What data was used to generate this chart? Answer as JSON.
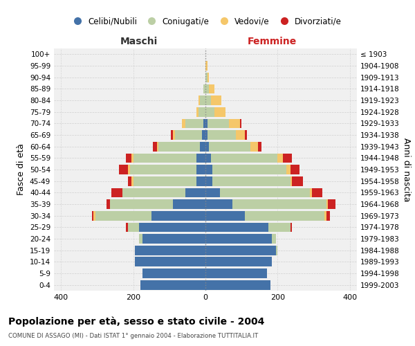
{
  "age_groups": [
    "0-4",
    "5-9",
    "10-14",
    "15-19",
    "20-24",
    "25-29",
    "30-34",
    "35-39",
    "40-44",
    "45-49",
    "50-54",
    "55-59",
    "60-64",
    "65-69",
    "70-74",
    "75-79",
    "80-84",
    "85-89",
    "90-94",
    "95-99",
    "100+"
  ],
  "birth_years": [
    "1999-2003",
    "1994-1998",
    "1989-1993",
    "1984-1988",
    "1979-1983",
    "1974-1978",
    "1969-1973",
    "1964-1968",
    "1959-1963",
    "1954-1958",
    "1949-1953",
    "1944-1948",
    "1939-1943",
    "1934-1938",
    "1929-1933",
    "1924-1928",
    "1919-1923",
    "1914-1918",
    "1909-1913",
    "1904-1908",
    "≤ 1903"
  ],
  "maschi": {
    "celibi": [
      180,
      175,
      195,
      195,
      175,
      185,
      150,
      90,
      55,
      25,
      25,
      25,
      15,
      10,
      5,
      0,
      0,
      0,
      0,
      0,
      0
    ],
    "coniugati": [
      0,
      0,
      0,
      0,
      10,
      30,
      155,
      175,
      175,
      175,
      185,
      175,
      115,
      75,
      50,
      20,
      15,
      5,
      0,
      0,
      0
    ],
    "vedovi": [
      0,
      0,
      0,
      0,
      0,
      0,
      5,
      0,
      0,
      5,
      5,
      5,
      5,
      5,
      10,
      5,
      5,
      0,
      0,
      0,
      0
    ],
    "divorziati": [
      0,
      0,
      0,
      0,
      0,
      5,
      5,
      10,
      30,
      10,
      25,
      15,
      10,
      5,
      0,
      0,
      0,
      0,
      0,
      0,
      0
    ]
  },
  "femmine": {
    "nubili": [
      180,
      170,
      185,
      195,
      185,
      175,
      110,
      75,
      40,
      20,
      20,
      15,
      10,
      5,
      5,
      0,
      0,
      0,
      0,
      0,
      0
    ],
    "coniugate": [
      0,
      0,
      0,
      5,
      10,
      60,
      220,
      260,
      250,
      215,
      205,
      185,
      115,
      80,
      60,
      25,
      15,
      10,
      5,
      0,
      0
    ],
    "vedove": [
      0,
      0,
      0,
      0,
      0,
      0,
      5,
      5,
      5,
      5,
      10,
      15,
      20,
      25,
      30,
      30,
      30,
      15,
      5,
      5,
      0
    ],
    "divorziate": [
      0,
      0,
      0,
      0,
      0,
      5,
      10,
      20,
      30,
      30,
      25,
      25,
      10,
      5,
      5,
      0,
      0,
      0,
      0,
      0,
      0
    ]
  },
  "colors": {
    "celibi": "#4472a8",
    "coniugati": "#bccfa5",
    "vedovi": "#f5c76a",
    "divorziati": "#cc2222"
  },
  "legend_labels": [
    "Celibi/Nubili",
    "Coniugati/e",
    "Vedovi/e",
    "Divorziati/e"
  ],
  "title": "Popolazione per età, sesso e stato civile - 2004",
  "subtitle": "COMUNE DI ASSAGO (MI) - Dati ISTAT 1° gennaio 2004 - Elaborazione TUTTITALIA.IT",
  "xlabel_left": "Maschi",
  "xlabel_right": "Femmine",
  "ylabel_left": "Fasce di età",
  "ylabel_right": "Anni di nascita",
  "xlim": 420,
  "bg_color": "#ffffff",
  "plot_bg_color": "#f0f0f0",
  "grid_color": "#cccccc"
}
